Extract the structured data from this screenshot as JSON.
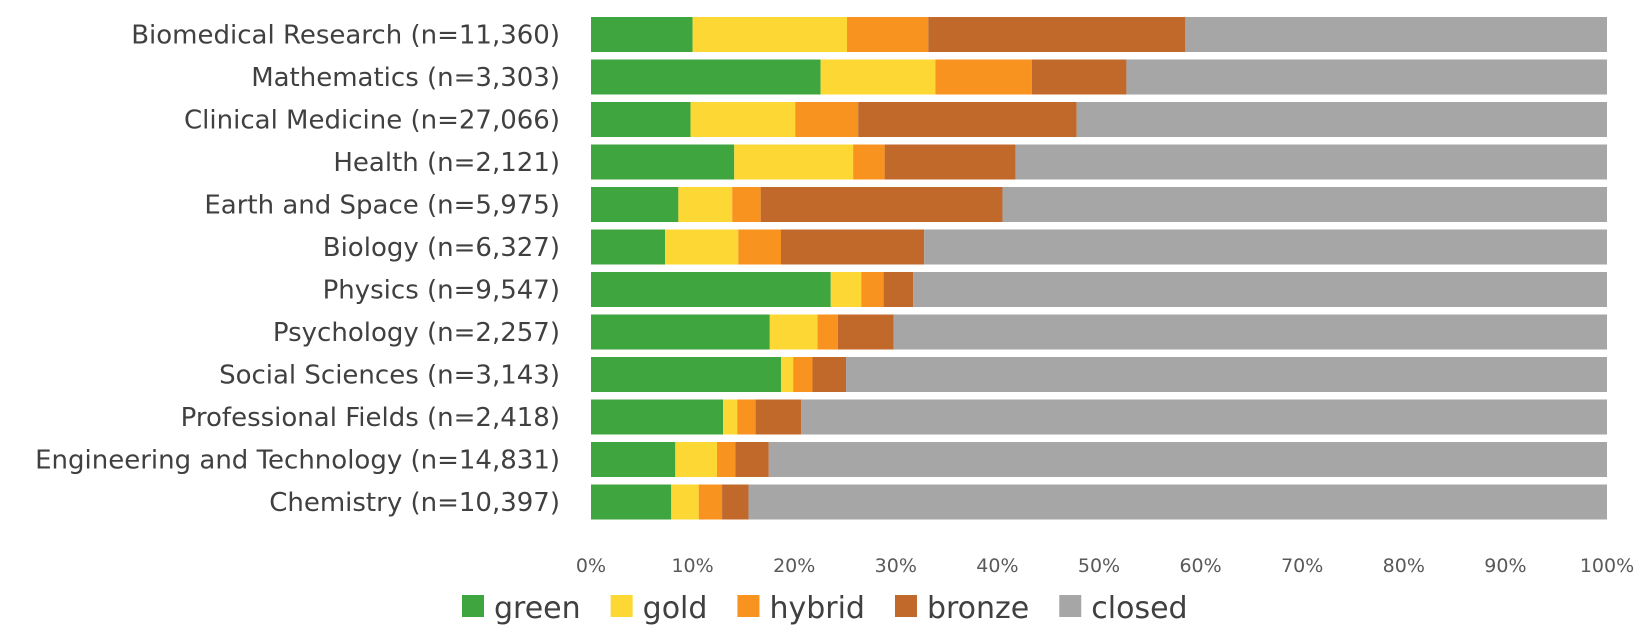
{
  "chart_data": {
    "type": "bar",
    "orientation": "horizontal",
    "stacked": true,
    "percent_stacked": true,
    "categories": [
      "Biomedical Research (n=11,360)",
      "Mathematics (n=3,303)",
      "Clinical Medicine (n=27,066)",
      "Health (n=2,121)",
      "Earth and Space (n=5,975)",
      "Biology (n=6,327)",
      "Physics (n=9,547)",
      "Psychology (n=2,257)",
      "Social Sciences (n=3,143)",
      "Professional Fields (n=2,418)",
      "Engineering and Technology (n=14,831)",
      "Chemistry (n=10,397)"
    ],
    "series": [
      {
        "name": "green",
        "color": "#3fa63f",
        "values": [
          10.0,
          22.6,
          9.8,
          14.1,
          8.6,
          7.3,
          23.6,
          17.6,
          18.7,
          13.0,
          8.3,
          7.9
        ]
      },
      {
        "name": "gold",
        "color": "#fdd835",
        "values": [
          15.2,
          11.3,
          10.3,
          11.7,
          5.3,
          7.2,
          3.0,
          4.7,
          1.2,
          1.4,
          4.1,
          2.7
        ]
      },
      {
        "name": "hybrid",
        "color": "#f7931e",
        "values": [
          8.0,
          9.5,
          6.2,
          3.1,
          2.8,
          4.2,
          2.2,
          2.0,
          1.9,
          1.8,
          1.8,
          2.3
        ]
      },
      {
        "name": "bronze",
        "color": "#c0692a",
        "values": [
          25.3,
          9.3,
          21.5,
          12.9,
          23.8,
          14.1,
          2.9,
          5.5,
          3.3,
          4.5,
          3.3,
          2.6
        ]
      },
      {
        "name": "closed",
        "color": "#a6a6a6",
        "values": [
          41.5,
          47.3,
          52.2,
          58.2,
          59.5,
          67.2,
          68.3,
          70.2,
          74.9,
          79.3,
          82.5,
          84.5
        ]
      }
    ],
    "x_tick_labels": [
      "0%",
      "10%",
      "20%",
      "30%",
      "40%",
      "50%",
      "60%",
      "70%",
      "80%",
      "90%",
      "100%"
    ],
    "xlim": [
      0,
      100
    ],
    "title": "",
    "xlabel": "",
    "ylabel": "",
    "grid": false,
    "legend_position": "bottom"
  }
}
